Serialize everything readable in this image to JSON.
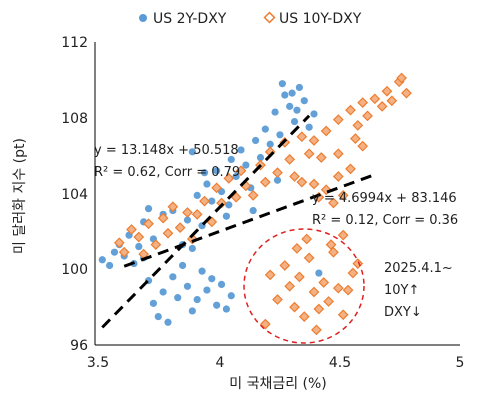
{
  "chart_data": {
    "type": "scatter",
    "xlabel": "미 국채금리 (%)",
    "ylabel": "미 달러화 지수 (pt)",
    "xlim": [
      3.5,
      5
    ],
    "ylim": [
      96,
      112
    ],
    "xticks": [
      "3.5",
      "4",
      "4.5",
      "5"
    ],
    "yticks": [
      "96",
      "100",
      "104",
      "108",
      "112"
    ],
    "grid": false,
    "legend_position": "top",
    "series": [
      {
        "name": "US 2Y-DXY",
        "marker": "circle",
        "color": "#5b9bd5",
        "points": [
          [
            3.53,
            100.5
          ],
          [
            3.56,
            100.2
          ],
          [
            3.58,
            100.9
          ],
          [
            3.6,
            101.3
          ],
          [
            3.62,
            100.7
          ],
          [
            3.64,
            101.8
          ],
          [
            3.66,
            100.3
          ],
          [
            3.68,
            101.2
          ],
          [
            3.7,
            100.6
          ],
          [
            3.72,
            99.4
          ],
          [
            3.74,
            98.2
          ],
          [
            3.76,
            97.5
          ],
          [
            3.78,
            98.8
          ],
          [
            3.8,
            97.2
          ],
          [
            3.82,
            99.6
          ],
          [
            3.84,
            98.5
          ],
          [
            3.86,
            100.2
          ],
          [
            3.88,
            99.1
          ],
          [
            3.9,
            97.8
          ],
          [
            3.92,
            98.4
          ],
          [
            3.94,
            99.9
          ],
          [
            3.96,
            98.9
          ],
          [
            3.98,
            99.5
          ],
          [
            4.0,
            98.1
          ],
          [
            4.02,
            99.2
          ],
          [
            4.04,
            97.9
          ],
          [
            4.06,
            98.6
          ],
          [
            3.7,
            102.5
          ],
          [
            3.72,
            103.2
          ],
          [
            3.74,
            101.6
          ],
          [
            3.78,
            102.9
          ],
          [
            3.8,
            101.9
          ],
          [
            3.82,
            103.1
          ],
          [
            3.86,
            101.3
          ],
          [
            3.88,
            102.6
          ],
          [
            3.9,
            101.1
          ],
          [
            3.92,
            103.9
          ],
          [
            3.94,
            102.3
          ],
          [
            3.96,
            104.5
          ],
          [
            3.98,
            103.6
          ],
          [
            4.0,
            105.2
          ],
          [
            4.02,
            104.1
          ],
          [
            4.04,
            102.8
          ],
          [
            4.06,
            105.8
          ],
          [
            4.08,
            104.9
          ],
          [
            4.1,
            106.3
          ],
          [
            4.12,
            105.5
          ],
          [
            4.14,
            104.3
          ],
          [
            4.16,
            106.8
          ],
          [
            4.18,
            105.9
          ],
          [
            4.2,
            107.4
          ],
          [
            4.22,
            106.6
          ],
          [
            4.24,
            108.3
          ],
          [
            4.26,
            107.1
          ],
          [
            4.28,
            109.2
          ],
          [
            4.3,
            108.6
          ],
          [
            4.32,
            107.8
          ],
          [
            4.34,
            109.6
          ],
          [
            4.36,
            108.9
          ],
          [
            4.38,
            107.5
          ],
          [
            4.4,
            108.2
          ],
          [
            4.42,
            99.8
          ],
          [
            4.27,
            109.8
          ],
          [
            4.31,
            109.3
          ],
          [
            4.33,
            108.4
          ],
          [
            3.9,
            106.2
          ],
          [
            3.95,
            105.1
          ],
          [
            4.05,
            103.4
          ],
          [
            4.15,
            103.1
          ],
          [
            4.25,
            104.7
          ]
        ]
      },
      {
        "name": "US 10Y-DXY",
        "marker": "diamond",
        "color": "#ed7d31",
        "points": [
          [
            3.6,
            101.4
          ],
          [
            3.62,
            100.9
          ],
          [
            3.65,
            102.1
          ],
          [
            3.68,
            101.7
          ],
          [
            3.7,
            100.8
          ],
          [
            3.72,
            102.4
          ],
          [
            3.75,
            101.3
          ],
          [
            3.78,
            102.7
          ],
          [
            3.8,
            101.9
          ],
          [
            3.82,
            103.3
          ],
          [
            3.85,
            102.2
          ],
          [
            3.88,
            103.0
          ],
          [
            3.9,
            101.6
          ],
          [
            3.92,
            102.9
          ],
          [
            3.95,
            103.6
          ],
          [
            3.98,
            102.5
          ],
          [
            4.0,
            104.3
          ],
          [
            4.02,
            103.5
          ],
          [
            4.05,
            104.8
          ],
          [
            4.08,
            103.8
          ],
          [
            4.1,
            105.2
          ],
          [
            4.12,
            104.4
          ],
          [
            4.15,
            103.9
          ],
          [
            4.18,
            105.5
          ],
          [
            4.2,
            104.6
          ],
          [
            4.22,
            106.2
          ],
          [
            4.25,
            105.1
          ],
          [
            4.28,
            106.7
          ],
          [
            4.3,
            105.8
          ],
          [
            4.32,
            104.9
          ],
          [
            4.35,
            107.0
          ],
          [
            4.38,
            106.1
          ],
          [
            4.4,
            104.5
          ],
          [
            4.42,
            103.8
          ],
          [
            4.45,
            104.2
          ],
          [
            4.48,
            103.5
          ],
          [
            4.5,
            104.9
          ],
          [
            4.52,
            103.9
          ],
          [
            4.55,
            105.3
          ],
          [
            4.4,
            106.8
          ],
          [
            4.45,
            107.3
          ],
          [
            4.5,
            107.9
          ],
          [
            4.55,
            108.4
          ],
          [
            4.58,
            107.6
          ],
          [
            4.6,
            108.8
          ],
          [
            4.62,
            108.1
          ],
          [
            4.65,
            109.0
          ],
          [
            4.68,
            108.6
          ],
          [
            4.7,
            109.4
          ],
          [
            4.72,
            108.9
          ],
          [
            4.75,
            109.9
          ],
          [
            4.78,
            109.3
          ],
          [
            4.76,
            110.1
          ],
          [
            4.6,
            106.5
          ],
          [
            4.57,
            106.9
          ],
          [
            4.5,
            106.1
          ],
          [
            4.43,
            105.9
          ],
          [
            4.35,
            104.6
          ],
          [
            4.25,
            98.4
          ],
          [
            4.28,
            100.2
          ],
          [
            4.3,
            99.1
          ],
          [
            4.32,
            98.0
          ],
          [
            4.34,
            99.6
          ],
          [
            4.36,
            97.5
          ],
          [
            4.38,
            100.6
          ],
          [
            4.4,
            98.8
          ],
          [
            4.42,
            97.9
          ],
          [
            4.44,
            99.3
          ],
          [
            4.46,
            98.3
          ],
          [
            4.48,
            100.9
          ],
          [
            4.5,
            99.0
          ],
          [
            4.52,
            97.6
          ],
          [
            4.54,
            98.9
          ],
          [
            4.56,
            99.8
          ],
          [
            4.33,
            101.1
          ],
          [
            4.37,
            101.6
          ],
          [
            4.47,
            101.3
          ],
          [
            4.52,
            101.8
          ],
          [
            4.2,
            97.1
          ],
          [
            4.22,
            99.7
          ],
          [
            4.41,
            96.8
          ],
          [
            4.58,
            100.3
          ]
        ]
      }
    ],
    "trendlines": [
      {
        "series": "US 2Y-DXY",
        "slope": 13.148,
        "intercept": 50.518,
        "x_range": [
          3.53,
          4.38
        ]
      },
      {
        "series": "US 10Y-DXY",
        "slope": 4.6994,
        "intercept": 83.146,
        "x_range": [
          3.62,
          4.66
        ]
      }
    ],
    "annotations": {
      "eq1_line1": "y = 13.148x + 50.518",
      "eq1_line2": "R² = 0.62, Corr = 0.79",
      "eq2_line1": "y = 4.6994x + 83.146",
      "eq2_line2": "R² = 0.12, Corr = 0.36",
      "note_line1": "2025.4.1~",
      "note_line2": "10Y↑",
      "note_line3": "DXY↓"
    }
  }
}
